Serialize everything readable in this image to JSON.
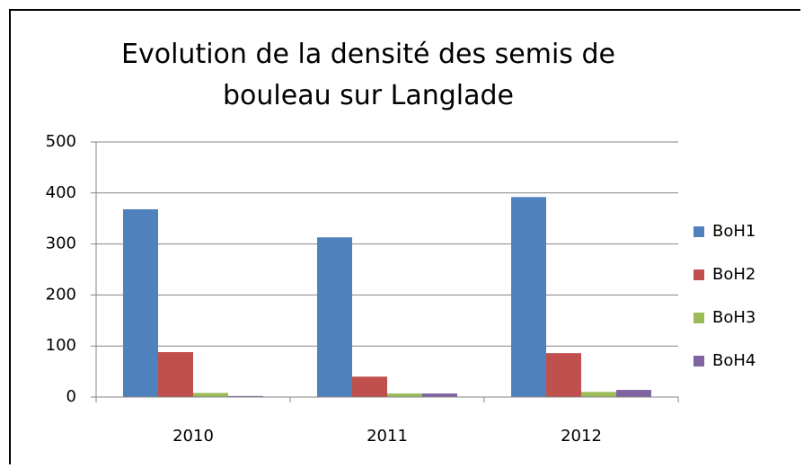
{
  "chart_data": {
    "type": "bar",
    "title": "Evolution de la densité des semis de bouleau sur Langlade",
    "categories": [
      "2010",
      "2011",
      "2012"
    ],
    "series": [
      {
        "name": "BoH1",
        "color": "#4f81bd",
        "values": [
          368,
          313,
          392
        ]
      },
      {
        "name": "BoH2",
        "color": "#c0504d",
        "values": [
          88,
          40,
          86
        ]
      },
      {
        "name": "BoH3",
        "color": "#9bbb59",
        "values": [
          8,
          7,
          10
        ]
      },
      {
        "name": "BoH4",
        "color": "#8064a2",
        "values": [
          2,
          7,
          14
        ]
      }
    ],
    "ylim": [
      0,
      500
    ],
    "yticks": [
      0,
      100,
      200,
      300,
      400,
      500
    ],
    "grid": true,
    "legend": "right"
  }
}
